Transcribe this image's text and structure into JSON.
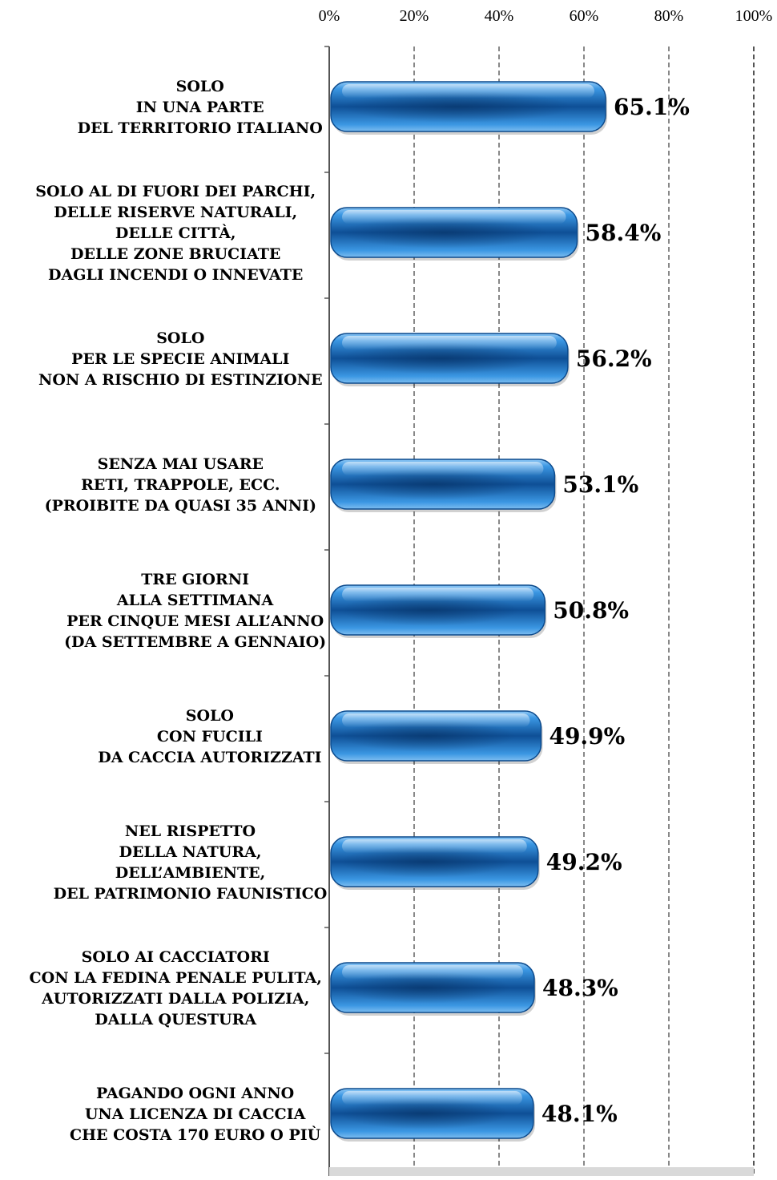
{
  "chart_data": {
    "type": "bar",
    "orientation": "horizontal",
    "xlim": [
      0,
      100
    ],
    "x_ticks": [
      "0%",
      "20%",
      "40%",
      "60%",
      "80%",
      "100%"
    ],
    "grid": "vertical dashed",
    "categories": [
      [
        "SOLO",
        "IN UNA PARTE",
        "DEL TERRITORIO ITALIANO"
      ],
      [
        "SOLO AL DI FUORI DEI PARCHI,",
        "DELLE RISERVE NATURALI,",
        "DELLE CITTÀ,",
        "DELLE ZONE BRUCIATE",
        "DAGLI INCENDI O INNEVATE"
      ],
      [
        "SOLO",
        "PER LE SPECIE ANIMALI",
        "NON A RISCHIO DI ESTINZIONE"
      ],
      [
        "SENZA MAI USARE",
        "RETI, TRAPPOLE, ECC.",
        "(PROIBITE DA QUASI 35 ANNI)"
      ],
      [
        "TRE GIORNI",
        "ALLA SETTIMANA",
        "PER CINQUE MESI ALL’ANNO",
        "(DA SETTEMBRE A GENNAIO)"
      ],
      [
        "SOLO",
        "CON FUCILI",
        "DA CACCIA AUTORIZZATI"
      ],
      [
        "NEL RISPETTO",
        "DELLA NATURA,",
        "DELL’AMBIENTE,",
        "DEL PATRIMONIO FAUNISTICO"
      ],
      [
        "SOLO AI CACCIATORI",
        "CON LA FEDINA PENALE PULITA,",
        "AUTORIZZATI DALLA POLIZIA,",
        "DALLA QUESTURA"
      ],
      [
        "PAGANDO OGNI ANNO",
        "UNA LICENZA DI CACCIA",
        "CHE COSTA 170 EURO O PIÙ"
      ]
    ],
    "values": [
      65.1,
      58.4,
      56.2,
      53.1,
      50.8,
      49.9,
      49.2,
      48.3,
      48.1
    ],
    "data_labels": [
      "65.1%",
      "58.4%",
      "56.2%",
      "53.1%",
      "50.8%",
      "49.9%",
      "49.2%",
      "48.3%",
      "48.1%"
    ],
    "bar_color": "#2a86d6",
    "bar_dark_color": "#0b3f7a"
  }
}
